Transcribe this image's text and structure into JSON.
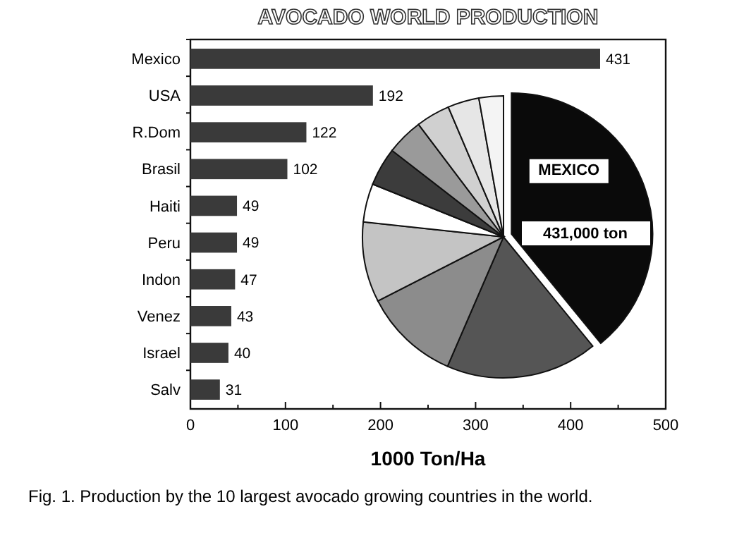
{
  "chart_data": [
    {
      "type": "bar",
      "orientation": "horizontal",
      "title": "AVOCADO WORLD PRODUCTION",
      "xlabel": "1000 Ton/Ha",
      "categories": [
        "Mexico",
        "USA",
        "R.Dom",
        "Brasil",
        "Haiti",
        "Peru",
        "Indon",
        "Venez",
        "Israel",
        "Salv"
      ],
      "values": [
        431,
        192,
        122,
        102,
        49,
        49,
        47,
        43,
        40,
        31
      ],
      "color": "#3a3a3a",
      "data_labels": true,
      "xlim": [
        0,
        500
      ],
      "xticks": [
        0,
        {
          "value": 50,
          "label": null
        },
        100,
        {
          "value": 150,
          "label": null
        },
        200,
        {
          "value": 250,
          "label": null
        },
        300,
        {
          "value": 350,
          "label": null
        },
        400,
        {
          "value": 450,
          "label": null
        },
        500
      ],
      "grid": false,
      "annotations": [
        "Fig. 1.  Production by the 10 largest avocado growing countries in the world."
      ]
    },
    {
      "type": "pie",
      "categories": [
        "MEXICO",
        null,
        null,
        null,
        null,
        null,
        null,
        null,
        null,
        null
      ],
      "values": [
        39.1,
        17.4,
        11.0,
        9.2,
        4.4,
        4.4,
        4.2,
        3.9,
        3.6,
        2.8
      ],
      "colors": [
        "#0a0a0a",
        "#555555",
        "#8c8c8c",
        "#c4c4c4",
        "#ffffff",
        "#3c3c3c",
        "#9a9a9a",
        "#d0d0d0",
        "#e6e6e6",
        "#f4f4f4"
      ],
      "annotations": [
        "431,000 ton"
      ]
    }
  ]
}
